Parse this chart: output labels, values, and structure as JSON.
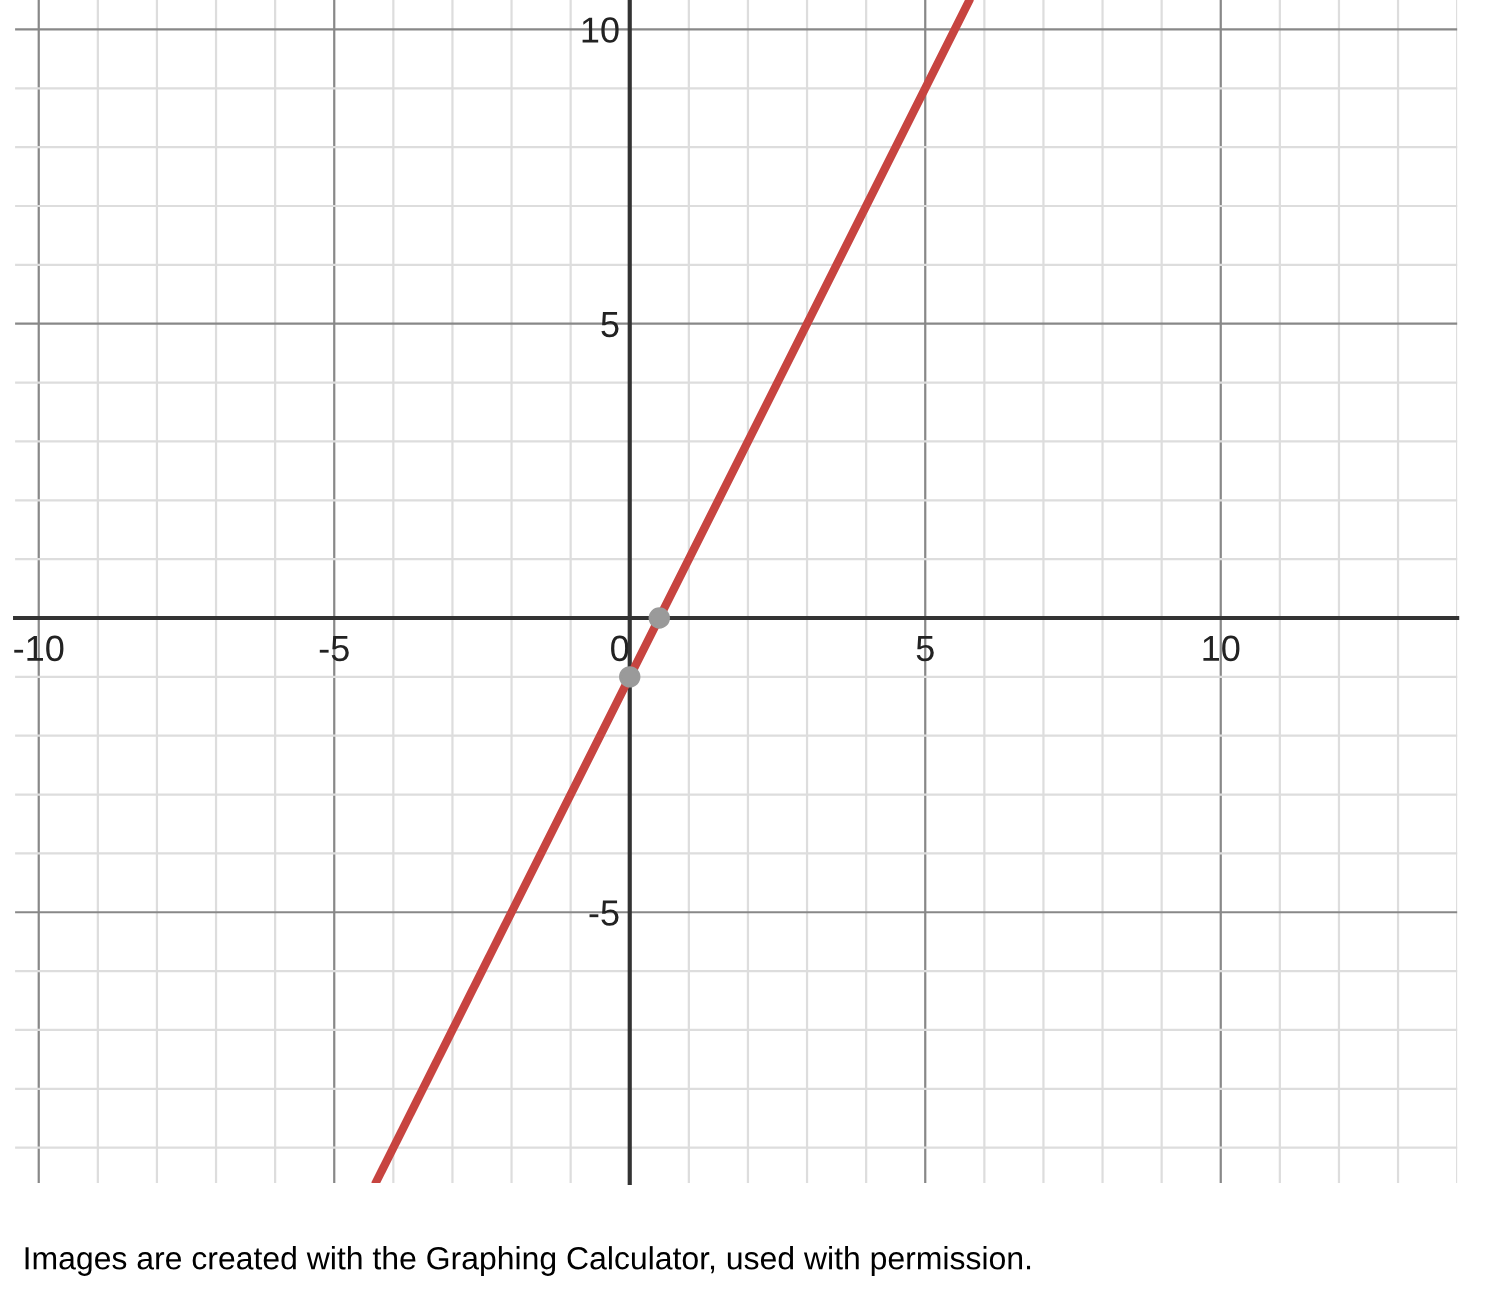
{
  "chart_data": {
    "type": "line",
    "xlim": [
      -10.4,
      14
    ],
    "ylim": [
      -9.6,
      10.5
    ],
    "xticks": [
      -10,
      -5,
      0,
      5,
      10
    ],
    "yticks": [
      -5,
      5,
      10
    ],
    "grid": true,
    "series": [
      {
        "color": "#c74440",
        "x": [
          -4.3,
          5.75
        ],
        "values": [
          -9.6,
          10.5
        ]
      },
      {
        "type": "scatter",
        "color": "#9a9a9a",
        "x": [
          0,
          0.5
        ],
        "values": [
          -1,
          0
        ]
      }
    ],
    "annotations": [
      "Images are created with the Graphing Calculator, used with permission."
    ]
  }
}
